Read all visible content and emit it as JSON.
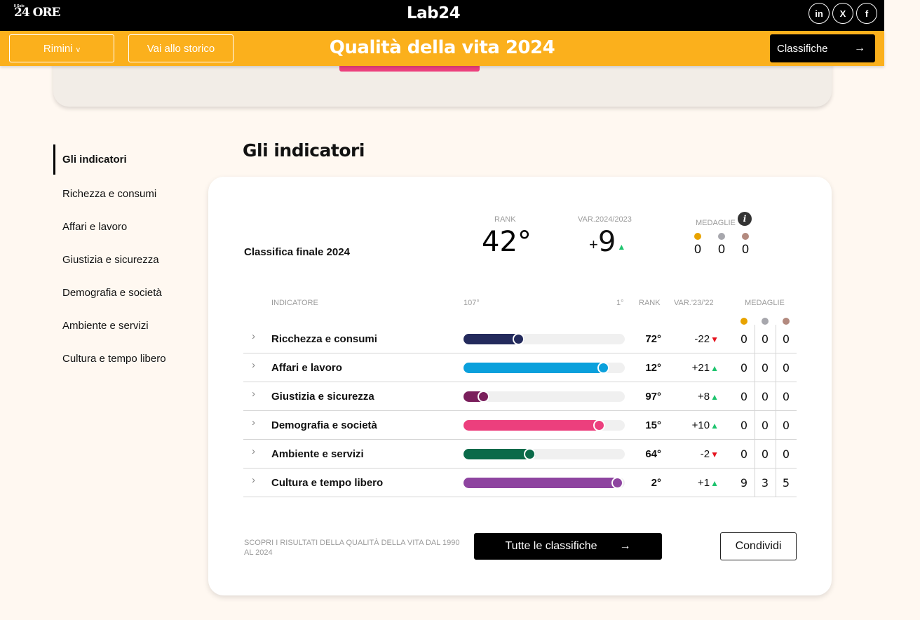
{
  "header": {
    "logo_small": "Il Sole",
    "logo_main": "24 ORE",
    "brand": "Lab24",
    "social": [
      "in",
      "X",
      "f"
    ]
  },
  "subheader": {
    "province_select": "Rimini",
    "history_button": "Vai allo storico",
    "title": "Qualità della vita 2024",
    "rankings_button": "Classifiche"
  },
  "sidebar": {
    "items": [
      {
        "label": "Gli indicatori",
        "active": true
      },
      {
        "label": "Richezza e consumi"
      },
      {
        "label": "Affari e lavoro"
      },
      {
        "label": "Giustizia e sicurezza"
      },
      {
        "label": "Demografia e società"
      },
      {
        "label": "Ambiente e servizi"
      },
      {
        "label": "Cultura e tempo libero"
      }
    ]
  },
  "main": {
    "title": "Gli indicatori",
    "summary": {
      "label": "Classifica finale 2024",
      "rank_caption": "RANK",
      "rank": "42°",
      "var_caption": "VAR.2024/2023",
      "var_sign": "+",
      "var_value": "9",
      "medals_caption": "MEDAGLIE",
      "medals": [
        "0",
        "0",
        "0"
      ]
    },
    "table": {
      "headers": {
        "indicator": "INDICATORE",
        "scale_left": "107°",
        "scale_right": "1°",
        "rank": "RANK",
        "var": "VAR.'23/'22",
        "medals": "MEDAGLIE"
      },
      "rows": [
        {
          "name": "Ricchezza e consumi",
          "rank": "72°",
          "rank_num": 72,
          "var": "-22",
          "trend": "down",
          "color": "#232a5c",
          "medals": [
            "0",
            "0",
            "0"
          ]
        },
        {
          "name": "Affari e lavoro",
          "rank": "12°",
          "rank_num": 12,
          "var": "+21",
          "trend": "up",
          "color": "#0aa0dc",
          "medals": [
            "0",
            "0",
            "0"
          ]
        },
        {
          "name": "Giustizia e sicurezza",
          "rank": "97°",
          "rank_num": 97,
          "var": "+8",
          "trend": "up",
          "color": "#7a1f5c",
          "medals": [
            "0",
            "0",
            "0"
          ]
        },
        {
          "name": "Demografia e società",
          "rank": "15°",
          "rank_num": 15,
          "var": "+10",
          "trend": "up",
          "color": "#ec3f7d",
          "medals": [
            "0",
            "0",
            "0"
          ]
        },
        {
          "name": "Ambiente e servizi",
          "rank": "64°",
          "rank_num": 64,
          "var": "-2",
          "trend": "down",
          "color": "#0a6a49",
          "medals": [
            "0",
            "0",
            "0"
          ]
        },
        {
          "name": "Cultura e tempo libero",
          "rank": "2°",
          "rank_num": 2,
          "var": "+1",
          "trend": "up",
          "color": "#8e44a0",
          "medals": [
            "9",
            "3",
            "5"
          ]
        }
      ]
    },
    "footer": {
      "note": "SCOPRI I RISULTATI DELLA QUALITÀ DELLA VITA DAL 1990 AL 2024",
      "all_button": "Tutte le classifiche",
      "share_button": "Condividi"
    }
  },
  "colors": {
    "gold": "#e8a300",
    "silver": "#a7a7ad",
    "bronze": "#b38a7f",
    "up": "#1ec46e",
    "down": "#e5141f",
    "accent": "#fbb01c"
  }
}
